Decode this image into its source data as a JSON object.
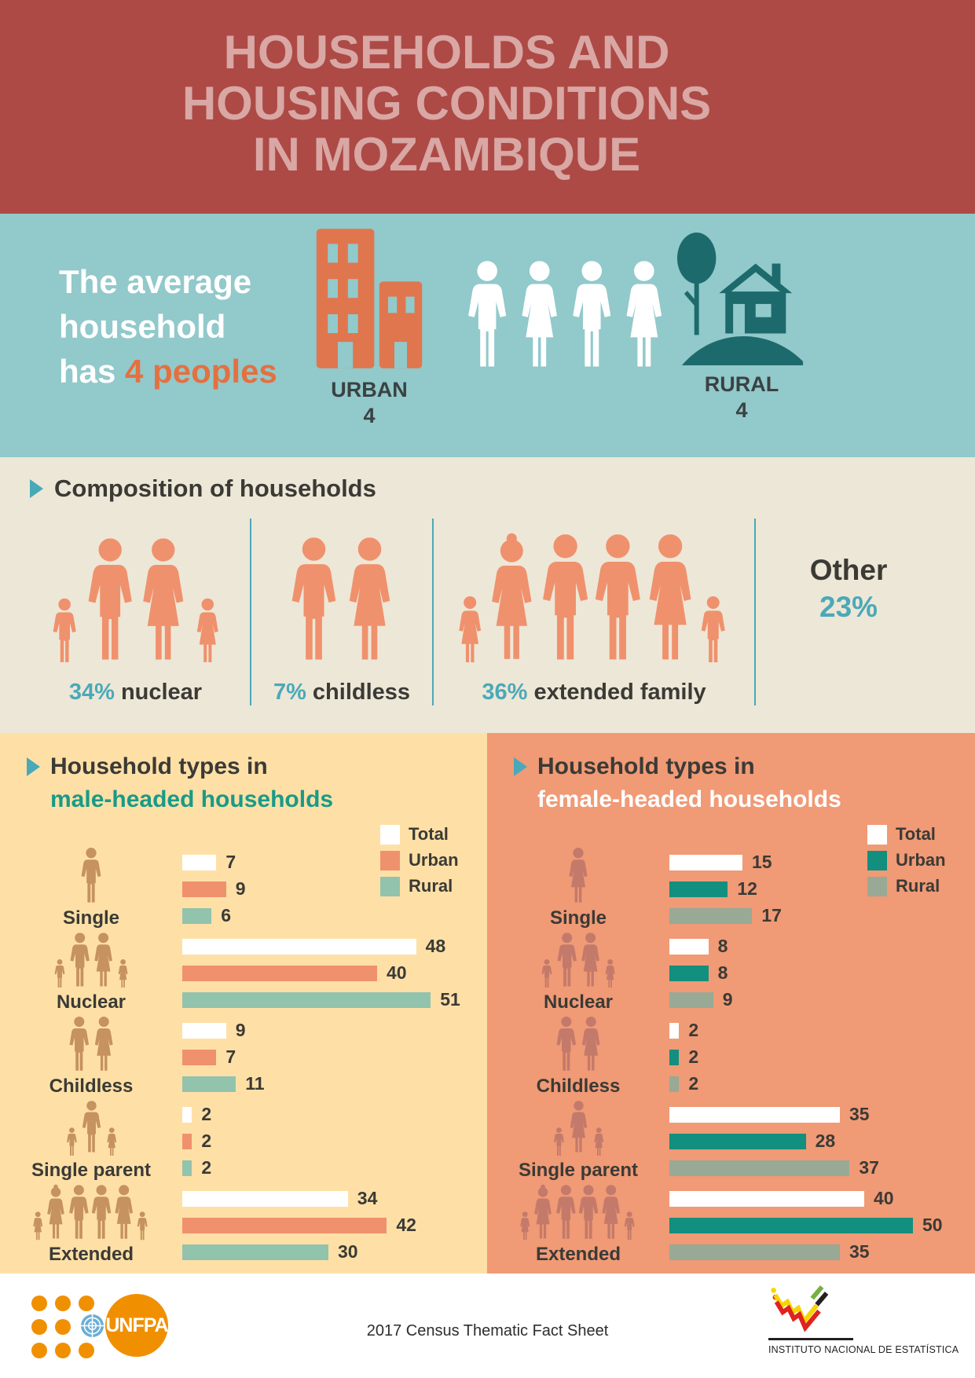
{
  "header": {
    "title_lines": [
      "HOUSEHOLDS AND",
      "HOUSING CONDITIONS",
      "IN MOZAMBIQUE"
    ]
  },
  "average_household": {
    "line1": "The average",
    "line2": "household",
    "line3_prefix": "has ",
    "line3_highlight": "4 peoples",
    "urban_label": "URBAN",
    "urban_value": "4",
    "rural_label": "RURAL",
    "rural_value": "4"
  },
  "composition": {
    "title": "Composition of households",
    "groups": [
      {
        "pct": "34%",
        "label": "nuclear"
      },
      {
        "pct": "7%",
        "label": "childless"
      },
      {
        "pct": "36%",
        "label": "extended family"
      }
    ],
    "other_label": "Other",
    "other_pct": "23%"
  },
  "panels": {
    "left": {
      "title_line1": "Household types in",
      "title_line2": "male-headed households"
    },
    "right": {
      "title_line1": "Household types in",
      "title_line2": "female-headed households"
    }
  },
  "footer": {
    "center_text": "2017 Census Thematic Fact Sheet",
    "unfpa_label": "UNFPA",
    "ine_label": "INSTITUTO NACIONAL DE ESTATÍSTICA"
  },
  "colors": {
    "header_bg": "#ad4a46",
    "header_text": "#d9a7a4",
    "band_bg": "#92c9cb",
    "accent_orange": "#e4703f",
    "building_orange": "#e0764e",
    "rural_teal": "#1d6a6d",
    "beige_bg": "#ede7d7",
    "people_salmon": "#f0916d",
    "teal_accent": "#4aa9b8",
    "text_dark": "#3b3a35",
    "left_panel_bg": "#fee0a7",
    "right_panel_bg": "#f09a76",
    "male_headed_accent": "#199a87",
    "male_icon": "#c6925f",
    "female_icon": "#c47a6a",
    "urban_left": "#f0916d",
    "rural_left": "#92c3ac",
    "urban_right": "#128f7e",
    "rural_right": "#98a996"
  },
  "chart_data": [
    {
      "type": "pie",
      "title": "Composition of households",
      "categories": [
        "nuclear",
        "childless",
        "extended family",
        "Other"
      ],
      "values": [
        34,
        7,
        36,
        23
      ],
      "unit": "%"
    },
    {
      "type": "bar",
      "title": "Household types in male-headed households",
      "orientation": "horizontal",
      "categories": [
        "Single",
        "Nuclear",
        "Childless",
        "Single parent",
        "Extended"
      ],
      "series": [
        {
          "name": "Total",
          "values": [
            7,
            48,
            9,
            2,
            34
          ]
        },
        {
          "name": "Urban",
          "values": [
            9,
            40,
            7,
            2,
            42
          ]
        },
        {
          "name": "Rural",
          "values": [
            6,
            51,
            11,
            2,
            30
          ]
        }
      ],
      "xlim": [
        0,
        55
      ],
      "legend_position": "top-right",
      "grid": false
    },
    {
      "type": "bar",
      "title": "Household types in female-headed households",
      "orientation": "horizontal",
      "categories": [
        "Single",
        "Nuclear",
        "Childless",
        "Single parent",
        "Extended"
      ],
      "series": [
        {
          "name": "Total",
          "values": [
            15,
            8,
            2,
            35,
            40
          ]
        },
        {
          "name": "Urban",
          "values": [
            12,
            8,
            2,
            28,
            50
          ]
        },
        {
          "name": "Rural",
          "values": [
            17,
            9,
            2,
            37,
            35
          ]
        }
      ],
      "xlim": [
        0,
        55
      ],
      "legend_position": "top-right",
      "grid": false
    },
    {
      "type": "table",
      "title": "The average household has 4 peoples",
      "categories": [
        "URBAN",
        "RURAL"
      ],
      "values": [
        4,
        4
      ]
    }
  ]
}
